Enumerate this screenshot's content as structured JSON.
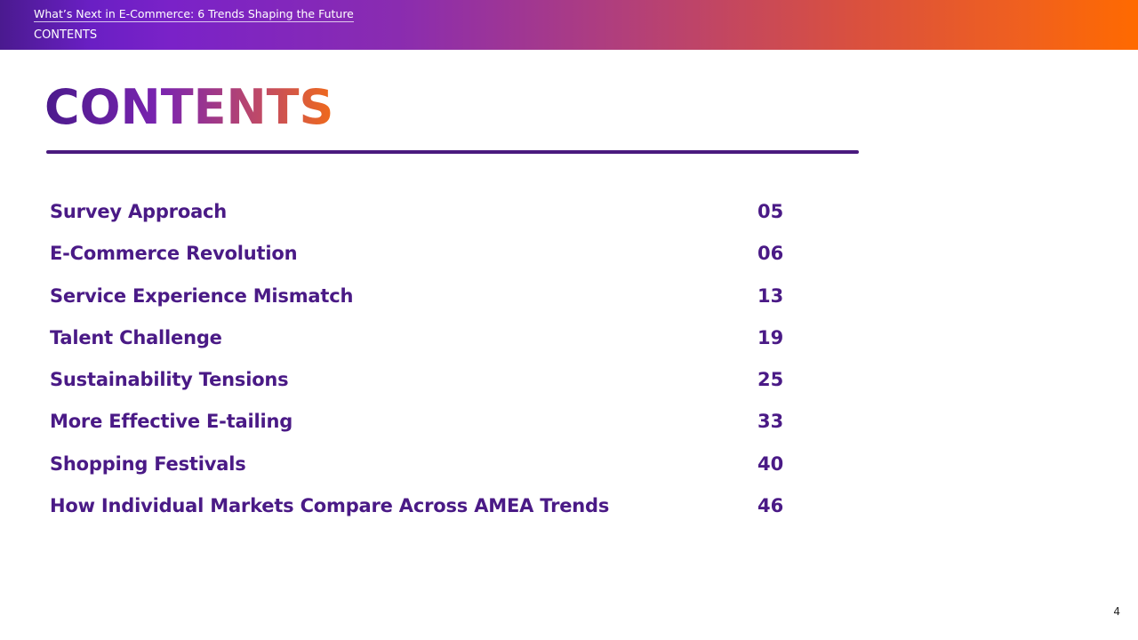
{
  "banner": {
    "title": "What’s Next in E-Commerce: 6 Trends Shaping the Future",
    "section": "CONTENTS",
    "gradient_start": "#4a1a8f",
    "gradient_end": "#ff6a00"
  },
  "heading": "CONTENTS",
  "colors": {
    "accent": "#4a1a86",
    "rule": "#4a1a7e"
  },
  "toc": [
    {
      "label": "Survey Approach",
      "page": "05"
    },
    {
      "label": "E-Commerce Revolution",
      "page": "06"
    },
    {
      "label": "Service Experience Mismatch",
      "page": "13"
    },
    {
      "label": "Talent Challenge",
      "page": "19"
    },
    {
      "label": "Sustainability Tensions",
      "page": "25"
    },
    {
      "label": "More Effective E-tailing",
      "page": "33"
    },
    {
      "label": "Shopping Festivals",
      "page": "40"
    },
    {
      "label": "How Individual Markets Compare Across AMEA Trends",
      "page": "46"
    }
  ],
  "page_number": "4"
}
